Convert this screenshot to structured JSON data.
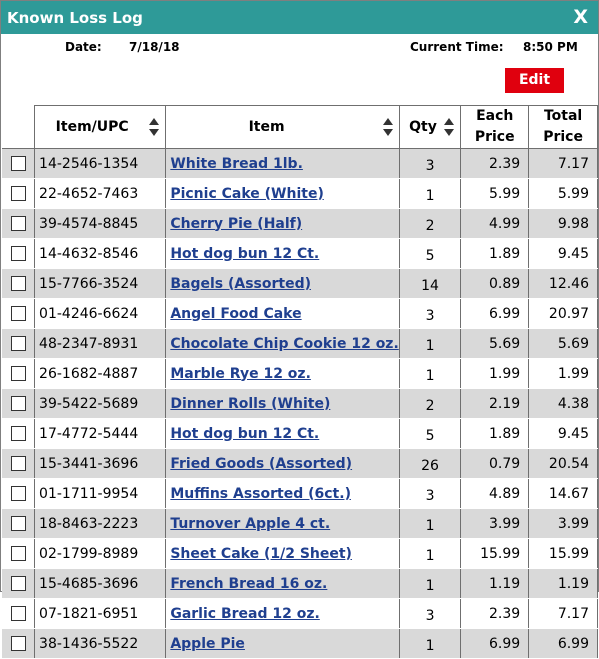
{
  "header": {
    "title": "Known Loss Log",
    "close": "X"
  },
  "info": {
    "date_label": "Date:",
    "date": "7/18/18",
    "time_label": "Current Time:",
    "time": "8:50 PM"
  },
  "edit_button": "Edit",
  "table": {
    "columns": [
      "Item/UPC",
      "Item",
      "Qty",
      "Each Price",
      "Total Price"
    ],
    "rows": [
      [
        "14-2546-1354",
        "White Bread 1lb.",
        "3",
        "2.39",
        "7.17"
      ],
      [
        "22-4652-7463",
        "Picnic Cake (White)",
        "1",
        "5.99",
        "5.99"
      ],
      [
        "39-4574-8845",
        "Cherry Pie (Half)",
        "2",
        "4.99",
        "9.98"
      ],
      [
        "14-4632-8546",
        "Hot dog bun 12 Ct.",
        "5",
        "1.89",
        "9.45"
      ],
      [
        "15-7766-3524",
        "Bagels (Assorted)",
        "14",
        "0.89",
        "12.46"
      ],
      [
        "01-4246-6624",
        "Angel Food Cake",
        "3",
        "6.99",
        "20.97"
      ],
      [
        "48-2347-8931",
        "Chocolate Chip Cookie 12 oz.",
        "1",
        "5.69",
        "5.69"
      ],
      [
        "26-1682-4887",
        "Marble Rye 12 oz.",
        "1",
        "1.99",
        "1.99"
      ],
      [
        "39-5422-5689",
        "Dinner Rolls (White)",
        "2",
        "2.19",
        "4.38"
      ],
      [
        "17-4772-5444",
        "Hot dog bun 12 Ct.",
        "5",
        "1.89",
        "9.45"
      ],
      [
        "15-3441-3696",
        "Fried Goods (Assorted)",
        "26",
        "0.79",
        "20.54"
      ],
      [
        "01-1711-9954",
        "Muffins Assorted (6ct.)",
        "3",
        "4.89",
        "14.67"
      ],
      [
        "18-8463-2223",
        "Turnover Apple 4 ct.",
        "1",
        "3.99",
        "3.99"
      ],
      [
        "02-1799-8989",
        "Sheet Cake (1/2 Sheet)",
        "1",
        "15.99",
        "15.99"
      ],
      [
        "15-4685-3696",
        "French Bread 16 oz.",
        "1",
        "1.19",
        "1.19"
      ],
      [
        "07-1821-6951",
        "Garlic Bread 12 oz.",
        "3",
        "2.39",
        "7.17"
      ],
      [
        "38-1436-5522",
        "Apple Pie",
        "1",
        "6.99",
        "6.99"
      ]
    ]
  }
}
